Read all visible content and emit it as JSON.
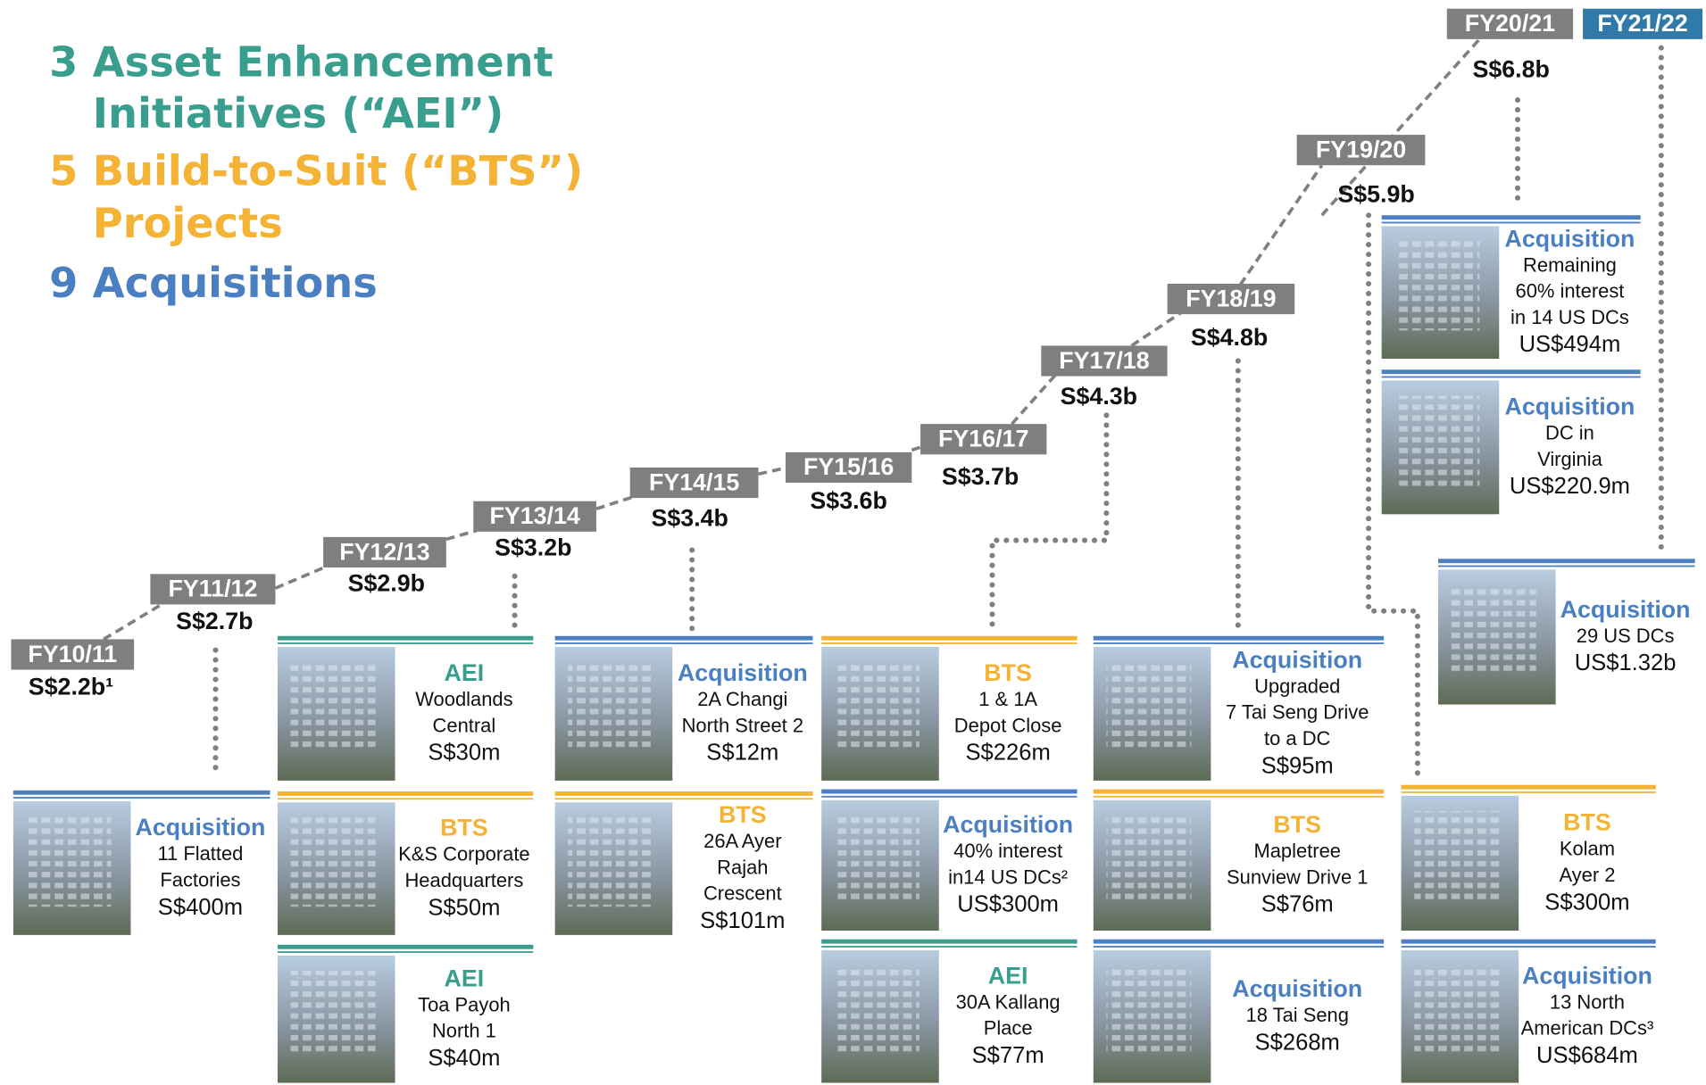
{
  "headline": [
    {
      "number": "3",
      "lines": [
        "Asset Enhancement",
        "Initiatives (“AEI”)"
      ]
    },
    {
      "number": "5",
      "lines": [
        "Build-to-Suit (“BTS”)",
        "Projects"
      ]
    },
    {
      "number": "9",
      "lines": [
        "Acquisitions"
      ]
    }
  ],
  "milestones": [
    {
      "fy": "FY10/11",
      "value": "S$2.2b¹"
    },
    {
      "fy": "FY11/12",
      "value": "S$2.7b"
    },
    {
      "fy": "FY12/13",
      "value": "S$2.9b"
    },
    {
      "fy": "FY13/14",
      "value": "S$3.2b"
    },
    {
      "fy": "FY14/15",
      "value": "S$3.4b"
    },
    {
      "fy": "FY15/16",
      "value": "S$3.6b"
    },
    {
      "fy": "FY16/17",
      "value": "S$3.7b"
    },
    {
      "fy": "FY17/18",
      "value": "S$4.3b"
    },
    {
      "fy": "FY18/19",
      "value": "S$4.8b"
    },
    {
      "fy": "FY19/20",
      "value": "S$5.9b"
    },
    {
      "fy": "FY20/21",
      "value": "S$6.8b"
    },
    {
      "fy": "FY21/22"
    }
  ],
  "projects": [
    {
      "type": "Acquisition",
      "lines": [
        "11 Flatted",
        "Factories"
      ],
      "amount": "S$400m"
    },
    {
      "type": "AEI",
      "lines": [
        "Woodlands",
        "Central"
      ],
      "amount": "S$30m"
    },
    {
      "type": "BTS",
      "lines": [
        "K&S Corporate",
        "Headquarters"
      ],
      "amount": "S$50m"
    },
    {
      "type": "AEI",
      "lines": [
        "Toa Payoh",
        "North 1"
      ],
      "amount": "S$40m"
    },
    {
      "type": "Acquisition",
      "lines": [
        "2A Changi",
        "North Street 2"
      ],
      "amount": "S$12m"
    },
    {
      "type": "BTS",
      "lines": [
        "26A Ayer",
        "Rajah",
        "Crescent"
      ],
      "amount": "S$101m"
    },
    {
      "type": "BTS",
      "lines": [
        "1 & 1A",
        "Depot Close"
      ],
      "amount": "S$226m"
    },
    {
      "type": "Acquisition",
      "lines": [
        "40% interest",
        "in14 US DCs²"
      ],
      "amount": "US$300m"
    },
    {
      "type": "AEI",
      "lines": [
        "30A Kallang",
        "Place"
      ],
      "amount": "S$77m"
    },
    {
      "type": "Acquisition",
      "lines": [
        "Upgraded",
        "7 Tai Seng Drive",
        "to a DC"
      ],
      "amount": "S$95m"
    },
    {
      "type": "BTS",
      "lines": [
        "Mapletree",
        "Sunview Drive 1"
      ],
      "amount": "S$76m"
    },
    {
      "type": "Acquisition",
      "lines": [
        "18 Tai Seng"
      ],
      "amount": "S$268m"
    },
    {
      "type": "BTS",
      "lines": [
        "Kolam",
        "Ayer 2"
      ],
      "amount": "S$300m"
    },
    {
      "type": "Acquisition",
      "lines": [
        "13 North",
        "American DCs³"
      ],
      "amount": "US$684m"
    },
    {
      "type": "Acquisition",
      "lines": [
        "Remaining",
        "60% interest",
        "in 14 US DCs"
      ],
      "amount": "US$494m"
    },
    {
      "type": "Acquisition",
      "lines": [
        "DC in",
        "Virginia"
      ],
      "amount": "US$220.9m"
    },
    {
      "type": "Acquisition",
      "lines": [
        "29 US DCs"
      ],
      "amount": "US$1.32b"
    }
  ]
}
